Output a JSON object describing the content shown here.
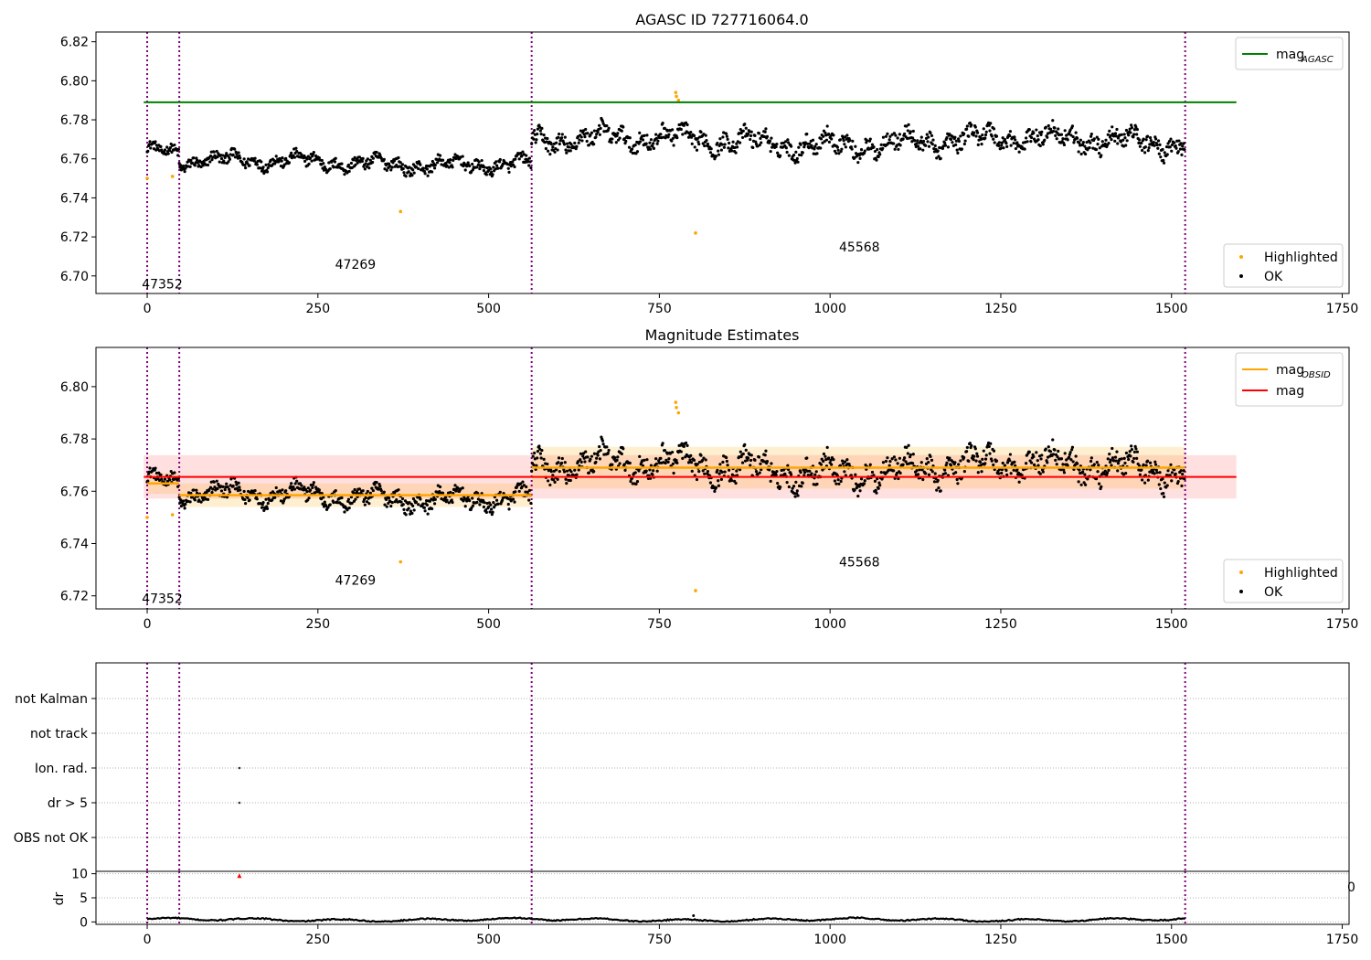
{
  "chart_data": [
    {
      "type": "scatter",
      "title": "AGASC ID 727716064.0",
      "xlabel": "",
      "ylabel": "",
      "xlim": [
        -75,
        1760
      ],
      "ylim": [
        6.691,
        6.825
      ],
      "x_ticks": [
        0,
        250,
        500,
        750,
        1000,
        1250,
        1500,
        1750
      ],
      "y_ticks": [
        6.7,
        6.72,
        6.74,
        6.76,
        6.78,
        6.8,
        6.82
      ],
      "y_decimals": 2,
      "grid": false,
      "legend_upper": {
        "position": "top-right",
        "entries": [
          {
            "label": "mag",
            "subscript": "AGASC",
            "color": "#008000"
          }
        ]
      },
      "legend_lower": {
        "position": "bottom-right",
        "entries": [
          {
            "label": "Highlighted",
            "color": "#ffa500"
          },
          {
            "label": "OK",
            "color": "#000000"
          }
        ]
      },
      "hlines": [
        {
          "name": "mag_AGASC",
          "y": 6.789,
          "x": [
            -5,
            1595
          ],
          "color": "#008000"
        }
      ],
      "vlines": [
        0,
        47,
        563,
        1520
      ],
      "obsid_labels": [
        {
          "text": "47352",
          "x": 22,
          "y": 6.696
        },
        {
          "text": "47269",
          "x": 305,
          "y": 6.706
        },
        {
          "text": "45568",
          "x": 1043,
          "y": 6.715
        }
      ],
      "ok_points": {
        "n": 1520,
        "segments": [
          {
            "x0": 0,
            "x1": 47,
            "base": 6.764,
            "amp": 0.005
          },
          {
            "x0": 47,
            "x1": 563,
            "base": 6.758,
            "amp": 0.006
          },
          {
            "x0": 563,
            "x1": 1520,
            "base": 6.769,
            "amp": 0.009
          }
        ]
      },
      "highlighted": [
        [
          0,
          6.75
        ],
        [
          37,
          6.751
        ],
        [
          371,
          6.733
        ],
        [
          774,
          6.794
        ],
        [
          775,
          6.792
        ],
        [
          778,
          6.79
        ],
        [
          803,
          6.722
        ]
      ]
    },
    {
      "type": "scatter",
      "title": "Magnitude Estimates",
      "xlabel": "",
      "ylabel": "",
      "xlim": [
        -75,
        1760
      ],
      "ylim": [
        6.715,
        6.815
      ],
      "x_ticks": [
        0,
        250,
        500,
        750,
        1000,
        1250,
        1500,
        1750
      ],
      "y_ticks": [
        6.72,
        6.74,
        6.76,
        6.78,
        6.8
      ],
      "y_decimals": 2,
      "grid": false,
      "legend_upper": {
        "position": "top-right",
        "entries": [
          {
            "label": "mag",
            "subscript": "OBSID",
            "color": "#ffa500"
          },
          {
            "label": "mag",
            "subscript": "",
            "color": "#ff0000"
          }
        ]
      },
      "legend_lower": {
        "position": "bottom-right",
        "entries": [
          {
            "label": "Highlighted",
            "color": "#ffa500"
          },
          {
            "label": "OK",
            "color": "#000000"
          }
        ]
      },
      "mag_band": {
        "y": 6.7655,
        "lo": 6.7572,
        "hi": 6.7738,
        "x": [
          -5,
          1595
        ]
      },
      "obsid_mags": [
        {
          "x0": 0,
          "x1": 47,
          "y": 6.763,
          "lo": 6.759,
          "hi": 6.767
        },
        {
          "x0": 47,
          "x1": 563,
          "y": 6.7585,
          "lo": 6.754,
          "hi": 6.763
        },
        {
          "x0": 563,
          "x1": 1520,
          "y": 6.769,
          "lo": 6.761,
          "hi": 6.777
        }
      ],
      "vlines": [
        0,
        47,
        563,
        1520
      ],
      "obsid_labels": [
        {
          "text": "47352",
          "x": 22,
          "y": 6.719
        },
        {
          "text": "47269",
          "x": 305,
          "y": 6.726
        },
        {
          "text": "45568",
          "x": 1043,
          "y": 6.733
        }
      ],
      "ok_points": {
        "n": 1520,
        "segments": [
          {
            "x0": 0,
            "x1": 47,
            "base": 6.764,
            "amp": 0.005
          },
          {
            "x0": 47,
            "x1": 563,
            "base": 6.758,
            "amp": 0.006
          },
          {
            "x0": 563,
            "x1": 1520,
            "base": 6.769,
            "amp": 0.009
          }
        ]
      },
      "highlighted": [
        [
          0,
          6.75
        ],
        [
          37,
          6.751
        ],
        [
          371,
          6.733
        ],
        [
          774,
          6.794
        ],
        [
          775,
          6.792
        ],
        [
          778,
          6.79
        ],
        [
          803,
          6.722
        ]
      ]
    },
    {
      "type": "scatter",
      "title": "",
      "xlabel": "",
      "ylabel": "",
      "xlim": [
        -75,
        1760
      ],
      "categories": [
        "not Kalman",
        "not track",
        "Ion. rad.",
        "dr > 5",
        "OBS not OK"
      ],
      "vlines": [
        0,
        47,
        563,
        1520
      ],
      "flag_points": [
        {
          "category": "Ion. rad.",
          "x": 135
        },
        {
          "category": "dr > 5",
          "x": 135
        }
      ]
    },
    {
      "type": "line",
      "title": "",
      "xlabel": "",
      "ylabel": "dr",
      "xlim": [
        -75,
        1760
      ],
      "ylim": [
        -0.5,
        10.5
      ],
      "x_ticks": [
        0,
        250,
        500,
        750,
        1000,
        1250,
        1500,
        1750
      ],
      "y_ticks": [
        0,
        5,
        10
      ],
      "y_decimals": 0,
      "right_tick_text": "0",
      "vlines": [
        0,
        47,
        563,
        1520
      ],
      "dr_series": {
        "x0": 0,
        "x1": 1520,
        "base": 0.45
      },
      "outlier": {
        "x": 135,
        "y": 9.6,
        "color": "#ff0000"
      },
      "spike": {
        "x": 800,
        "y": 1.3
      }
    }
  ]
}
